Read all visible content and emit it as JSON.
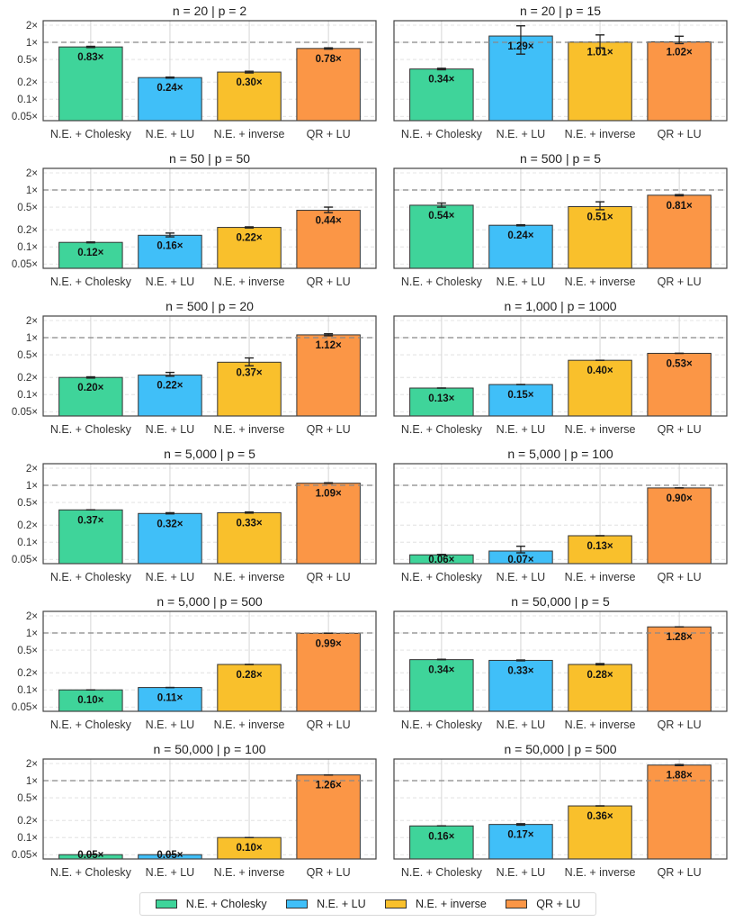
{
  "chart_data": {
    "type": "bar",
    "layout": "grid 6 rows x 2 columns of subplots, shared log y-axis",
    "categories": [
      "N.E. + Cholesky",
      "N.E. + LU",
      "N.E. + inverse",
      "QR + LU"
    ],
    "colors": [
      "#3fd49a",
      "#40bff8",
      "#f9c02c",
      "#fb9646"
    ],
    "yscale": "log",
    "ylim": [
      0.042,
      2.4
    ],
    "yticks": [
      0.05,
      0.1,
      0.2,
      0.5,
      1,
      2
    ],
    "ytick_labels": [
      "0.05×",
      "0.1×",
      "0.2×",
      "0.5×",
      "1×",
      "2×"
    ],
    "reference_line": {
      "y": 1,
      "style": "dashed",
      "color": "#888888"
    },
    "grid": true,
    "legend": {
      "position": "bottom-center",
      "entries": [
        "N.E. + Cholesky",
        "N.E. + LU",
        "N.E. + inverse",
        "QR + LU"
      ]
    },
    "panels": [
      {
        "title": "n = 20 | p = 2",
        "values": [
          0.83,
          0.24,
          0.3,
          0.78
        ],
        "labels": [
          "0.83×",
          "0.24×",
          "0.30×",
          "0.78×"
        ],
        "err_low": [
          0.81,
          0.235,
          0.29,
          0.76
        ],
        "err_high": [
          0.85,
          0.245,
          0.31,
          0.8
        ]
      },
      {
        "title": "n = 20 | p = 15",
        "values": [
          0.34,
          1.29,
          1.01,
          1.02
        ],
        "labels": [
          "0.34×",
          "1.29×",
          "1.01×",
          "1.02×"
        ],
        "err_low": [
          0.33,
          0.62,
          0.8,
          0.95
        ],
        "err_high": [
          0.35,
          1.95,
          1.35,
          1.28
        ]
      },
      {
        "title": "n = 50 | p = 50",
        "values": [
          0.12,
          0.16,
          0.22,
          0.44
        ],
        "labels": [
          "0.12×",
          "0.16×",
          "0.22×",
          "0.44×"
        ],
        "err_low": [
          0.118,
          0.15,
          0.215,
          0.4
        ],
        "err_high": [
          0.122,
          0.175,
          0.225,
          0.5
        ]
      },
      {
        "title": "n = 500 | p = 5",
        "values": [
          0.54,
          0.24,
          0.51,
          0.81
        ],
        "labels": [
          "0.54×",
          "0.24×",
          "0.51×",
          "0.81×"
        ],
        "err_low": [
          0.5,
          0.235,
          0.45,
          0.79
        ],
        "err_high": [
          0.59,
          0.245,
          0.62,
          0.83
        ]
      },
      {
        "title": "n = 500 | p = 20",
        "values": [
          0.2,
          0.22,
          0.37,
          1.12
        ],
        "labels": [
          "0.20×",
          "0.22×",
          "0.37×",
          "1.12×"
        ],
        "err_low": [
          0.195,
          0.21,
          0.32,
          1.08
        ],
        "err_high": [
          0.205,
          0.245,
          0.44,
          1.17
        ]
      },
      {
        "title": "n = 1,000 | p = 1000",
        "values": [
          0.13,
          0.15,
          0.4,
          0.53
        ],
        "labels": [
          "0.13×",
          "0.15×",
          "0.40×",
          "0.53×"
        ],
        "err_low": [
          0.13,
          0.15,
          0.4,
          0.53
        ],
        "err_high": [
          0.13,
          0.15,
          0.4,
          0.53
        ]
      },
      {
        "title": "n = 5,000 | p = 5",
        "values": [
          0.37,
          0.32,
          0.33,
          1.09
        ],
        "labels": [
          "0.37×",
          "0.32×",
          "0.33×",
          "1.09×"
        ],
        "err_low": [
          0.37,
          0.315,
          0.325,
          1.08
        ],
        "err_high": [
          0.37,
          0.33,
          0.34,
          1.11
        ]
      },
      {
        "title": "n = 5,000 | p = 100",
        "values": [
          0.06,
          0.07,
          0.13,
          0.9
        ],
        "labels": [
          "0.06×",
          "0.07×",
          "0.13×",
          "0.90×"
        ],
        "err_low": [
          0.06,
          0.065,
          0.13,
          0.9
        ],
        "err_high": [
          0.061,
          0.085,
          0.13,
          0.9
        ]
      },
      {
        "title": "n = 5,000 | p = 500",
        "values": [
          0.1,
          0.11,
          0.28,
          0.99
        ],
        "labels": [
          "0.10×",
          "0.11×",
          "0.28×",
          "0.99×"
        ],
        "err_low": [
          0.1,
          0.11,
          0.28,
          0.99
        ],
        "err_high": [
          0.1,
          0.11,
          0.28,
          0.99
        ]
      },
      {
        "title": "n = 50,000 | p = 5",
        "values": [
          0.34,
          0.33,
          0.28,
          1.28
        ],
        "labels": [
          "0.34×",
          "0.33×",
          "0.28×",
          "1.28×"
        ],
        "err_low": [
          0.34,
          0.325,
          0.275,
          1.28
        ],
        "err_high": [
          0.345,
          0.335,
          0.29,
          1.28
        ]
      },
      {
        "title": "n = 50,000 | p = 100",
        "values": [
          0.05,
          0.05,
          0.1,
          1.26
        ],
        "labels": [
          "0.05×",
          "0.05×",
          "0.10×",
          "1.26×"
        ],
        "err_low": [
          0.05,
          0.05,
          0.1,
          1.26
        ],
        "err_high": [
          0.05,
          0.05,
          0.1,
          1.26
        ]
      },
      {
        "title": "n = 50,000 | p = 500",
        "values": [
          0.16,
          0.17,
          0.36,
          1.88
        ],
        "labels": [
          "0.16×",
          "0.17×",
          "0.36×",
          "1.88×"
        ],
        "err_low": [
          0.16,
          0.165,
          0.36,
          1.84
        ],
        "err_high": [
          0.16,
          0.175,
          0.36,
          1.92
        ]
      }
    ]
  }
}
